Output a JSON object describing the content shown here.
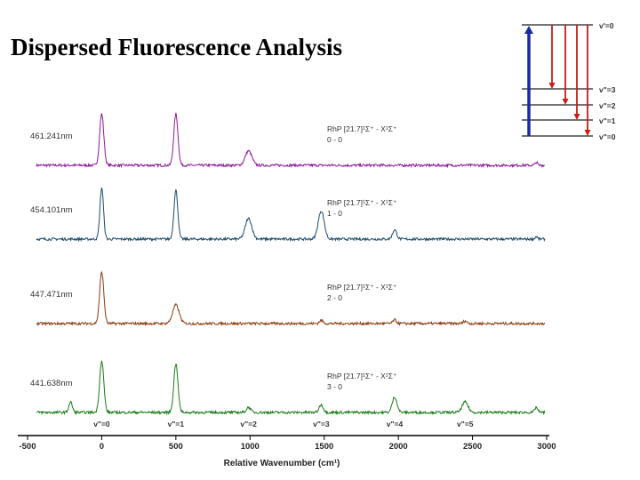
{
  "slide": {
    "title": "Dispersed Fluorescence Analysis"
  },
  "chart_data": {
    "type": "line",
    "xlabel": "Relative Wavenumber (cm¹)",
    "xlim": [
      -500,
      3000
    ],
    "x_ticks": [
      "-500",
      "0",
      "500",
      "1000",
      "1500",
      "2000",
      "2500",
      "3000"
    ],
    "x_tick_values": [
      -500,
      0,
      500,
      1000,
      1500,
      2000,
      2500,
      3000
    ],
    "peak_labels": [
      {
        "label": "v\"=0",
        "x": 0
      },
      {
        "label": "v\"=1",
        "x": 500
      },
      {
        "label": "v\"=2",
        "x": 990
      },
      {
        "label": "v\"=3",
        "x": 1480
      },
      {
        "label": "v\"=4",
        "x": 1975
      },
      {
        "label": "v\"=5",
        "x": 2450
      }
    ],
    "series": [
      {
        "excitation": "461.241nm",
        "band_line1": "RhP [21.7]¹Σ⁺ - X¹Σ⁺",
        "band_line2": "0 - 0",
        "color": "#8a1a9a",
        "peaks": [
          {
            "x": 0,
            "height": 1.0,
            "width": 14
          },
          {
            "x": 500,
            "height": 1.0,
            "width": 14
          },
          {
            "x": 990,
            "height": 0.28,
            "width": 22
          },
          {
            "x": 2930,
            "height": 0.06,
            "width": 8
          }
        ]
      },
      {
        "excitation": "454.101nm",
        "band_line1": "RhP [21.7]¹Σ⁺ - X¹Σ⁺",
        "band_line2": "1 - 0",
        "color": "#1a4a6a",
        "peaks": [
          {
            "x": 0,
            "height": 1.0,
            "width": 12
          },
          {
            "x": 500,
            "height": 0.95,
            "width": 13
          },
          {
            "x": 990,
            "height": 0.4,
            "width": 22
          },
          {
            "x": 1480,
            "height": 0.55,
            "width": 20
          },
          {
            "x": 1975,
            "height": 0.18,
            "width": 14
          },
          {
            "x": 2930,
            "height": 0.05,
            "width": 8
          }
        ]
      },
      {
        "excitation": "447.471nm",
        "band_line1": "RhP [21.7]¹Σ⁺ - X¹Σ⁺",
        "band_line2": "2 - 0",
        "color": "#8a3a10",
        "peaks": [
          {
            "x": 0,
            "height": 1.0,
            "width": 14
          },
          {
            "x": 500,
            "height": 0.36,
            "width": 22
          },
          {
            "x": 1480,
            "height": 0.06,
            "width": 12
          },
          {
            "x": 1975,
            "height": 0.07,
            "width": 12
          },
          {
            "x": 2450,
            "height": 0.05,
            "width": 12
          }
        ]
      },
      {
        "excitation": "441.638nm",
        "band_line1": "RhP [21.7]¹Σ⁺ - X¹Σ⁺",
        "band_line2": "3 - 0",
        "color": "#1a7a1a",
        "peaks": [
          {
            "x": -210,
            "height": 0.2,
            "width": 12
          },
          {
            "x": 0,
            "height": 1.0,
            "width": 14
          },
          {
            "x": 500,
            "height": 0.95,
            "width": 14
          },
          {
            "x": 990,
            "height": 0.1,
            "width": 14
          },
          {
            "x": 1480,
            "height": 0.15,
            "width": 14
          },
          {
            "x": 1975,
            "height": 0.3,
            "width": 16
          },
          {
            "x": 2450,
            "height": 0.2,
            "width": 20
          },
          {
            "x": 2930,
            "height": 0.1,
            "width": 10
          }
        ]
      }
    ]
  },
  "energy_diagram": {
    "upper_level": "v'=0",
    "lower_levels": [
      "v\"=3",
      "v\"=2",
      "v\"=1",
      "v\"=0"
    ],
    "excitation_color": "#1a2aa0",
    "emission_color": "#cc1a1a"
  }
}
